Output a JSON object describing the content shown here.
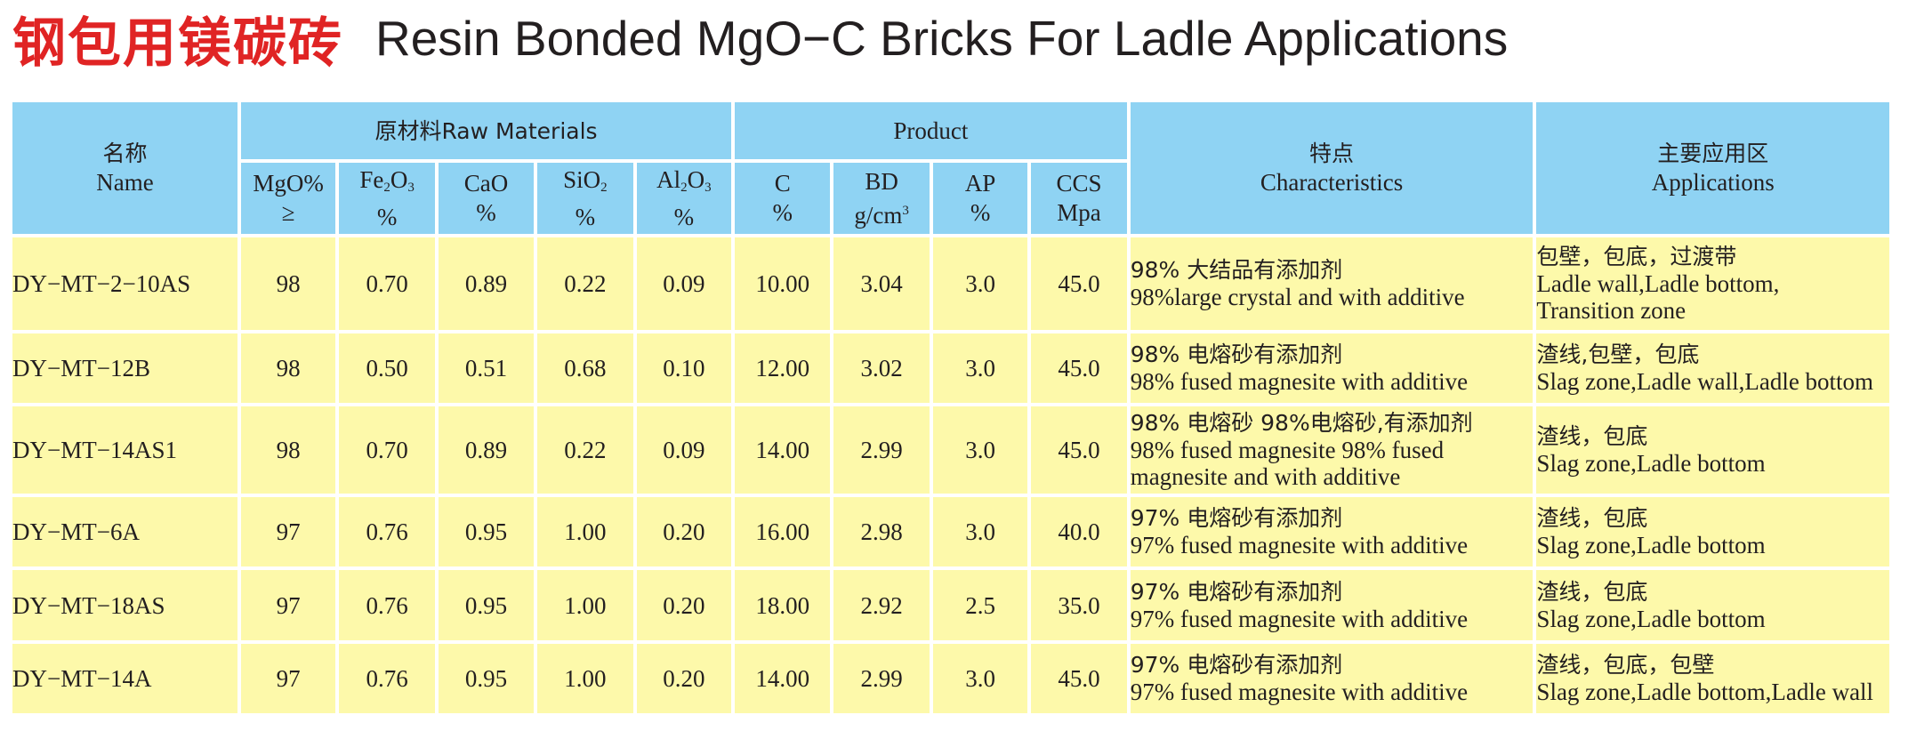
{
  "title": {
    "cn": "钢包用镁碳砖",
    "en": "Resin Bonded MgO−C Bricks For Ladle Applications"
  },
  "headers": {
    "name": {
      "cn": "名称",
      "en": "Name"
    },
    "raw_materials": "原材料Raw  Materials",
    "product": "Product",
    "characteristics": {
      "cn": "特点",
      "en": "Characteristics"
    },
    "applications": {
      "cn": "主要应用区",
      "en": "Applications"
    },
    "mgo": {
      "top": "MgO%",
      "bottom": "≥"
    },
    "fe2o3": {
      "a": "Fe",
      "s1": "2",
      "b": "O",
      "s2": "3",
      "bottom": "%"
    },
    "cao": {
      "top": "CaO",
      "bottom": "%"
    },
    "sio2": {
      "a": "SiO",
      "s1": "2",
      "bottom": "%"
    },
    "al2o3": {
      "a": "Al",
      "s1": "2",
      "b": "O",
      "s2": "3",
      "bottom": "%"
    },
    "c": {
      "top": "C",
      "bottom": "%"
    },
    "bd": {
      "top": "BD",
      "bottom": "g/cm",
      "sup": "3"
    },
    "ap": {
      "top": "AP",
      "bottom": "%"
    },
    "ccs": {
      "top": "CCS",
      "bottom": "Mpa"
    }
  },
  "rows": [
    {
      "name": "DY−MT−2−10AS",
      "mgo": "98",
      "fe2o3": "0.70",
      "cao": "0.89",
      "sio2": "0.22",
      "al2o3": "0.09",
      "c": "10.00",
      "bd": "3.04",
      "ap": "3.0",
      "ccs": "45.0",
      "char": [
        "98% 大结品有添加剂",
        "98%large crystal and with additive"
      ],
      "app": [
        "包壁，包底，过渡带",
        "Ladle wall,Ladle bottom,",
        "Transition zone"
      ]
    },
    {
      "name": "DY−MT−12B",
      "mgo": "98",
      "fe2o3": "0.50",
      "cao": "0.51",
      "sio2": "0.68",
      "al2o3": "0.10",
      "c": "12.00",
      "bd": "3.02",
      "ap": "3.0",
      "ccs": "45.0",
      "char": [
        "98% 电熔砂有添加剂",
        "98%  fused magnesite with additive"
      ],
      "app": [
        "渣线,包壁，包底",
        "Slag zone,Ladle wall,Ladle bottom"
      ]
    },
    {
      "name": "DY−MT−14AS1",
      "mgo": "98",
      "fe2o3": "0.70",
      "cao": "0.89",
      "sio2": "0.22",
      "al2o3": "0.09",
      "c": "14.00",
      "bd": "2.99",
      "ap": "3.0",
      "ccs": "45.0",
      "char": [
        "98% 电熔砂 98%电熔砂,有添加剂",
        "98%  fused magnesite 98% fused",
        "magnesite and with additive"
      ],
      "app": [
        "渣线，包底",
        "Slag zone,Ladle bottom"
      ]
    },
    {
      "name": "DY−MT−6A",
      "mgo": "97",
      "fe2o3": "0.76",
      "cao": "0.95",
      "sio2": "1.00",
      "al2o3": "0.20",
      "c": "16.00",
      "bd": "2.98",
      "ap": "3.0",
      "ccs": "40.0",
      "char": [
        "97% 电熔砂有添加剂",
        "97%  fused magnesite with additive"
      ],
      "app": [
        "渣线，包底",
        "Slag zone,Ladle bottom"
      ]
    },
    {
      "name": "DY−MT−18AS",
      "mgo": "97",
      "fe2o3": "0.76",
      "cao": "0.95",
      "sio2": "1.00",
      "al2o3": "0.20",
      "c": "18.00",
      "bd": "2.92",
      "ap": "2.5",
      "ccs": "35.0",
      "char": [
        "97% 电熔砂有添加剂",
        "97%  fused magnesite with additive"
      ],
      "app": [
        "渣线，包底",
        "Slag zone,Ladle bottom"
      ]
    },
    {
      "name": "DY−MT−14A",
      "mgo": "97",
      "fe2o3": "0.76",
      "cao": "0.95",
      "sio2": "1.00",
      "al2o3": "0.20",
      "c": "14.00",
      "bd": "2.99",
      "ap": "3.0",
      "ccs": "45.0",
      "char": [
        "97% 电熔砂有添加剂",
        "97%  fused magnesite with additive"
      ],
      "app": [
        "渣线，包底，包壁",
        "Slag zone,Ladle bottom,Ladle wall"
      ]
    }
  ],
  "colors": {
    "title_cn": "#e02424",
    "header_bg": "#8fd3f3",
    "row_bg": "#fdf9aa",
    "text": "#231f20"
  }
}
